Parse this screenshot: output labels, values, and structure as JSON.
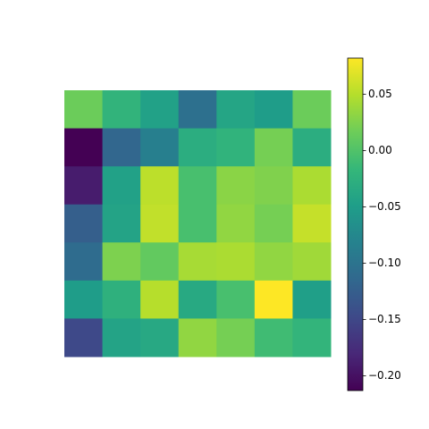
{
  "chart_data": {
    "type": "heatmap",
    "colormap": "viridis",
    "values": [
      [
        0.015,
        -0.021,
        -0.045,
        -0.104,
        -0.04,
        -0.05,
        0.015
      ],
      [
        -0.213,
        -0.116,
        -0.086,
        -0.03,
        -0.022,
        0.02,
        -0.03
      ],
      [
        -0.19,
        -0.045,
        0.053,
        -0.005,
        0.03,
        0.025,
        0.045
      ],
      [
        -0.125,
        -0.042,
        0.055,
        -0.005,
        0.033,
        0.02,
        0.057
      ],
      [
        -0.11,
        0.024,
        0.01,
        0.043,
        0.045,
        0.033,
        0.04
      ],
      [
        -0.05,
        -0.025,
        0.05,
        -0.035,
        -0.005,
        0.082,
        -0.048
      ],
      [
        -0.148,
        -0.042,
        -0.036,
        0.033,
        0.02,
        -0.01,
        -0.02
      ]
    ],
    "zlim": [
      -0.213,
      0.082
    ],
    "zticks": [
      {
        "value": 0.05,
        "label": "0.05"
      },
      {
        "value": 0,
        "label": "0.00"
      },
      {
        "value": -0.05,
        "label": "−0.05"
      },
      {
        "value": -0.1,
        "label": "−0.10"
      },
      {
        "value": -0.15,
        "label": "−0.15"
      },
      {
        "value": -0.2,
        "label": "−0.20"
      }
    ]
  }
}
